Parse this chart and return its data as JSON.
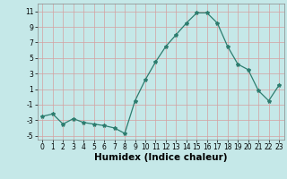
{
  "x": [
    0,
    1,
    2,
    3,
    4,
    5,
    6,
    7,
    8,
    9,
    10,
    11,
    12,
    13,
    14,
    15,
    16,
    17,
    18,
    19,
    20,
    21,
    22,
    23
  ],
  "y": [
    -2.5,
    -2.2,
    -3.5,
    -2.8,
    -3.3,
    -3.5,
    -3.7,
    -4.0,
    -4.7,
    -0.5,
    2.2,
    4.5,
    6.5,
    8.0,
    9.5,
    10.8,
    10.8,
    9.5,
    6.5,
    4.2,
    3.5,
    0.8,
    -0.5,
    1.5
  ],
  "line_color": "#2d7d6f",
  "marker": "*",
  "marker_size": 3,
  "bgcolor": "#c5e8e8",
  "grid_color": "#d4a0a0",
  "xlabel": "Humidex (Indice chaleur)",
  "ylim": [
    -5.5,
    12
  ],
  "yticks": [
    -5,
    -3,
    -1,
    1,
    3,
    5,
    7,
    9,
    11
  ],
  "xticks": [
    0,
    1,
    2,
    3,
    4,
    5,
    6,
    7,
    8,
    9,
    10,
    11,
    12,
    13,
    14,
    15,
    16,
    17,
    18,
    19,
    20,
    21,
    22,
    23
  ],
  "tick_label_fontsize": 5.5,
  "xlabel_fontsize": 7.5
}
